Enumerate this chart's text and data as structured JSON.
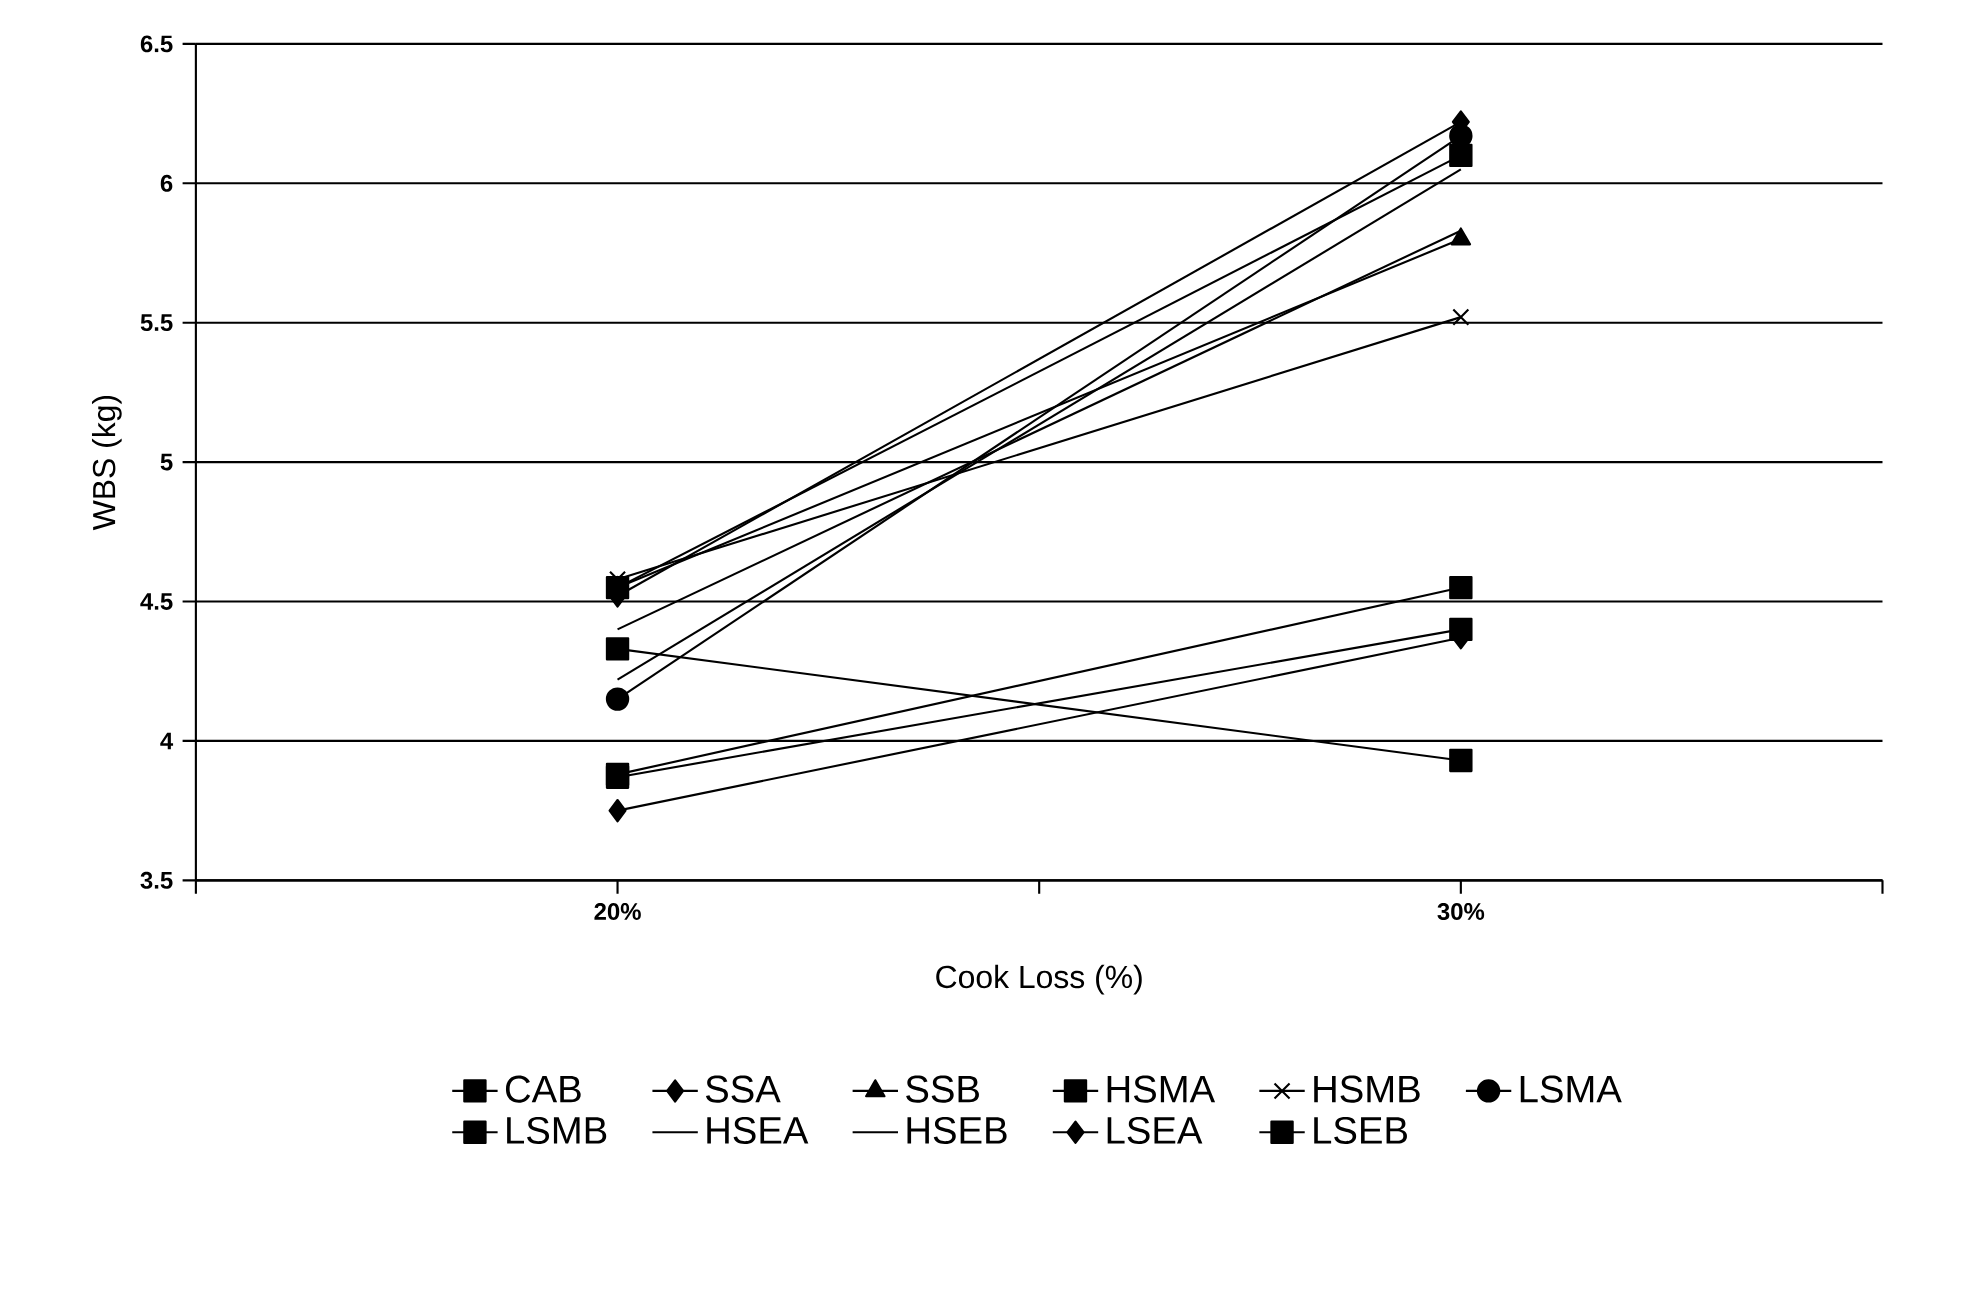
{
  "chart_data": {
    "type": "line",
    "xlabel": "Cook Loss (%)",
    "ylabel": "WBS (kg)",
    "categories": [
      "20%",
      "30%"
    ],
    "ylim": [
      3.5,
      6.5
    ],
    "yticks": [
      3.5,
      4,
      4.5,
      5,
      5.5,
      6,
      6.5
    ],
    "grid": "y",
    "legend": "bottom",
    "series": [
      {
        "name": "CAB",
        "color": "#000000",
        "marker": "square",
        "values": [
          4.55,
          6.1
        ]
      },
      {
        "name": "SSA",
        "color": "#000000",
        "marker": "diamond",
        "values": [
          4.52,
          6.22
        ]
      },
      {
        "name": "SSB",
        "color": "#000000",
        "marker": "triangle",
        "values": [
          4.55,
          5.8
        ]
      },
      {
        "name": "HSMA",
        "color": "#000000",
        "marker": "square",
        "values": [
          3.88,
          4.55
        ]
      },
      {
        "name": "HSMB",
        "color": "#000000",
        "marker": "cross",
        "values": [
          4.58,
          5.52
        ]
      },
      {
        "name": "LSMA",
        "color": "#000000",
        "marker": "circle",
        "values": [
          4.15,
          6.17
        ]
      },
      {
        "name": "LSMB",
        "color": "#000000",
        "marker": "square",
        "values": [
          4.33,
          3.93
        ]
      },
      {
        "name": "HSEA",
        "color": "#000000",
        "marker": "none",
        "values": [
          4.4,
          5.83
        ]
      },
      {
        "name": "HSEB",
        "color": "#000000",
        "marker": "none",
        "values": [
          4.22,
          6.05
        ]
      },
      {
        "name": "LSEA",
        "color": "#000000",
        "marker": "diamond",
        "values": [
          3.75,
          4.37
        ]
      },
      {
        "name": "LSEB",
        "color": "#000000",
        "marker": "square",
        "values": [
          3.87,
          4.4
        ]
      }
    ]
  }
}
